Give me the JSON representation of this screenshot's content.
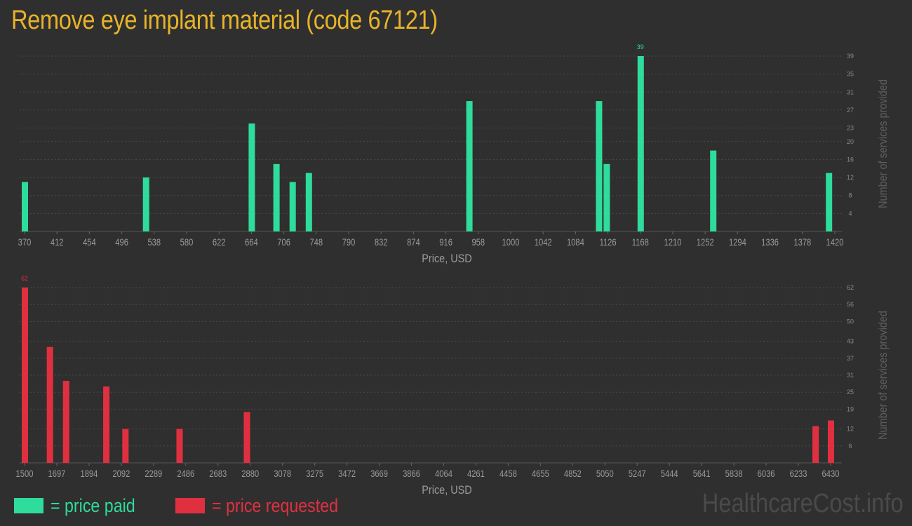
{
  "title": "Remove eye implant material (code 67121)",
  "colors": {
    "paid": "#2edc9c",
    "requested": "#e03040",
    "title": "#e8b32a",
    "text": "#888888"
  },
  "legend": {
    "paid_label": "= price paid",
    "requested_label": "= price requested"
  },
  "watermark": "HealthcareCost.info",
  "chart_data": [
    {
      "type": "bar",
      "series": [
        {
          "name": "price paid",
          "color": "#2edc9c"
        }
      ],
      "xlabel": "Price, USD",
      "ylabel": "Number of services provided",
      "xlim": [
        370,
        1420
      ],
      "xticks": [
        "370",
        "412",
        "454",
        "496",
        "538",
        "580",
        "622",
        "664",
        "706",
        "748",
        "790",
        "832",
        "874",
        "916",
        "958",
        "1000",
        "1042",
        "1084",
        "1126",
        "1168",
        "1210",
        "1252",
        "1294",
        "1336",
        "1378",
        "1420"
      ],
      "ylim": [
        0,
        39
      ],
      "yticks": [
        4,
        8,
        12,
        16,
        20,
        23,
        27,
        31,
        35,
        39
      ],
      "grid": true,
      "max_label": "39",
      "x": [
        370,
        527,
        664,
        696,
        717,
        738,
        946,
        1114,
        1124,
        1168,
        1262,
        1412
      ],
      "values": [
        11,
        12,
        24,
        15,
        11,
        13,
        29,
        29,
        15,
        39,
        18,
        13
      ]
    },
    {
      "type": "bar",
      "series": [
        {
          "name": "price requested",
          "color": "#e03040"
        }
      ],
      "xlabel": "Price, USD",
      "ylabel": "Number of services provided",
      "xlim": [
        1500,
        6430
      ],
      "xticks": [
        "1500",
        "1697",
        "1894",
        "2092",
        "2289",
        "2486",
        "2683",
        "2880",
        "3078",
        "3275",
        "3472",
        "3669",
        "3866",
        "4064",
        "4261",
        "4458",
        "4655",
        "4852",
        "5050",
        "5247",
        "5444",
        "5641",
        "5838",
        "6036",
        "6233",
        "6430"
      ],
      "ylim": [
        0,
        62
      ],
      "yticks": [
        6,
        12,
        19,
        25,
        31,
        37,
        43,
        50,
        56,
        62
      ],
      "grid": true,
      "max_label": "62",
      "x": [
        1500,
        1653,
        1752,
        1998,
        2115,
        2446,
        2858,
        6336,
        6430
      ],
      "values": [
        62,
        41,
        29,
        27,
        12,
        12,
        18,
        13,
        15
      ]
    }
  ]
}
